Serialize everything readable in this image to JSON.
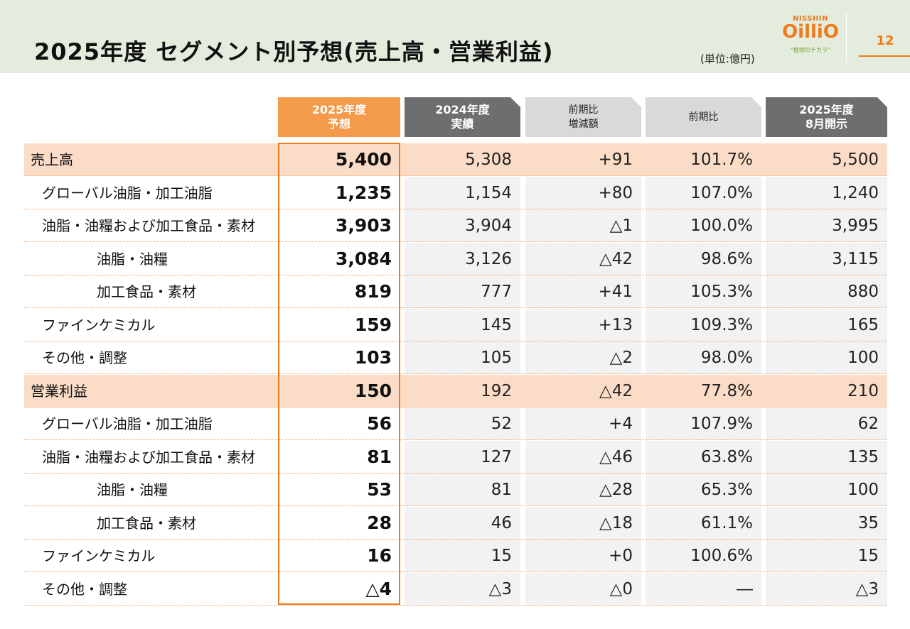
{
  "header": {
    "title": "2025年度 セグメント別予想(売上高・営業利益)",
    "unit": "(単位:億円)",
    "page_number": "12",
    "logo": {
      "brand": "NISSHIN",
      "mark": "OilliO",
      "tagline": "\"植物のチカラ\""
    }
  },
  "columns": [
    {
      "label": "2025年度\n予想",
      "style": "orange"
    },
    {
      "label": "2024年度\n実績",
      "style": "dark"
    },
    {
      "label": "前期比\n増減額",
      "style": "light"
    },
    {
      "label": "前期比",
      "style": "light"
    },
    {
      "label": "2025年度\n8月開示",
      "style": "dark"
    }
  ],
  "rows": [
    {
      "label": "売上高",
      "values": [
        "5,400",
        "5,308",
        "+91",
        "101.7%",
        "5,500"
      ]
    },
    {
      "label": "グローバル油脂・加工油脂",
      "values": [
        "1,235",
        "1,154",
        "+80",
        "107.0%",
        "1,240"
      ]
    },
    {
      "label": "油脂・油糧および加工食品・素材",
      "values": [
        "3,903",
        "3,904",
        "△1",
        "100.0%",
        "3,995"
      ]
    },
    {
      "label": "油脂・油糧",
      "values": [
        "3,084",
        "3,126",
        "△42",
        "98.6%",
        "3,115"
      ]
    },
    {
      "label": "加工食品・素材",
      "values": [
        "819",
        "777",
        "+41",
        "105.3%",
        "880"
      ]
    },
    {
      "label": "ファインケミカル",
      "values": [
        "159",
        "145",
        "+13",
        "109.3%",
        "165"
      ]
    },
    {
      "label": "その他・調整",
      "values": [
        "103",
        "105",
        "△2",
        "98.0%",
        "100"
      ]
    },
    {
      "label": "営業利益",
      "values": [
        "150",
        "192",
        "△42",
        "77.8%",
        "210"
      ]
    },
    {
      "label": "グローバル油脂・加工油脂",
      "values": [
        "56",
        "52",
        "+4",
        "107.9%",
        "62"
      ]
    },
    {
      "label": "油脂・油糧および加工食品・素材",
      "values": [
        "81",
        "127",
        "△46",
        "63.8%",
        "135"
      ]
    },
    {
      "label": "油脂・油糧",
      "values": [
        "53",
        "81",
        "△28",
        "65.3%",
        "100"
      ]
    },
    {
      "label": "加工食品・素材",
      "values": [
        "28",
        "46",
        "△18",
        "61.1%",
        "35"
      ]
    },
    {
      "label": "ファインケミカル",
      "values": [
        "16",
        "15",
        "+0",
        "100.6%",
        "15"
      ]
    },
    {
      "label": "その他・調整",
      "values": [
        "△4",
        "△3",
        "△0",
        "―",
        "△3"
      ]
    }
  ]
}
